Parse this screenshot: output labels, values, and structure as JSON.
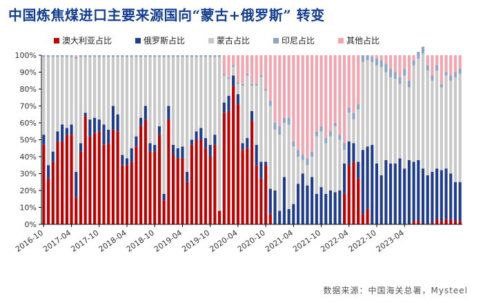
{
  "title": "中国炼焦煤进口主要来源国向“蒙古+俄罗斯” 转变",
  "source": "数据来源：中国海关总署，Mysteel",
  "legend": [
    {
      "label": "澳大利亚占比",
      "color": "#c00000"
    },
    {
      "label": "俄罗斯占比",
      "color": "#1f3d8c"
    },
    {
      "label": "蒙古占比",
      "color": "#c8c8c8"
    },
    {
      "label": "印尼占比",
      "color": "#8ea5c8"
    },
    {
      "label": "其他占比",
      "color": "#f2a5ae"
    }
  ],
  "chart_data": {
    "type": "bar",
    "stacked": true,
    "title": "中国炼焦煤进口主要来源国向“蒙古+俄罗斯” 转变",
    "x_start": "2016-10",
    "x_end": "2023-09",
    "tick_labels": [
      "2016-10",
      "2017-04",
      "2017-10",
      "2018-04",
      "2018-10",
      "2019-04",
      "2019-10",
      "2020-04",
      "2020-10",
      "2021-04",
      "2021-10",
      "2022-04",
      "2022-10",
      "2023-04"
    ],
    "y_ticks": [
      "0%",
      "10%",
      "20%",
      "30%",
      "40%",
      "50%",
      "60%",
      "70%",
      "80%",
      "90%",
      "100%"
    ],
    "ylim": [
      0,
      100
    ],
    "unit": "%",
    "series": [
      {
        "name": "澳大利亚占比",
        "color": "#c00000",
        "values": [
          47,
          27,
          37,
          49,
          49,
          53,
          53,
          16,
          43,
          64,
          52,
          54,
          55,
          47,
          48,
          56,
          55,
          35,
          35,
          37,
          46,
          58,
          62,
          43,
          43,
          53,
          14,
          62,
          41,
          39,
          39,
          25,
          47,
          50,
          50,
          45,
          40,
          47,
          8,
          66,
          67,
          82,
          71,
          44,
          45,
          61,
          35,
          27,
          35,
          6,
          0,
          0,
          0,
          0,
          0,
          0,
          0,
          0,
          0,
          0,
          0,
          0,
          0,
          0,
          0,
          18,
          35,
          37,
          27,
          6,
          9,
          0,
          0,
          0,
          0,
          0,
          0,
          0,
          0,
          0,
          2,
          2,
          0,
          0,
          1,
          3,
          2,
          3,
          3,
          2,
          2
        ]
      },
      {
        "name": "俄罗斯占比",
        "color": "#1f3d8c",
        "values": [
          6,
          8,
          6,
          6,
          10,
          4,
          6,
          15,
          5,
          2,
          10,
          9,
          7,
          12,
          8,
          14,
          10,
          6,
          4,
          8,
          6,
          5,
          8,
          5,
          4,
          5,
          4,
          8,
          6,
          6,
          7,
          6,
          3,
          5,
          7,
          6,
          7,
          6,
          0,
          6,
          9,
          6,
          6,
          4,
          6,
          6,
          12,
          10,
          2,
          15,
          20,
          8,
          28,
          9,
          12,
          24,
          30,
          23,
          28,
          18,
          22,
          18,
          20,
          19,
          20,
          18,
          14,
          11,
          10,
          38,
          37,
          47,
          36,
          29,
          38,
          36,
          36,
          39,
          33,
          38,
          35,
          36,
          33,
          29,
          30,
          30,
          30,
          30,
          27,
          23,
          23
        ]
      },
      {
        "name": "蒙古占比",
        "color": "#c8c8c8",
        "values": [
          46,
          64,
          56,
          44,
          40,
          42,
          40,
          67,
          51,
          33,
          37,
          36,
          37,
          40,
          43,
          29,
          34,
          58,
          60,
          54,
          47,
          36,
          29,
          51,
          52,
          41,
          81,
          29,
          52,
          54,
          53,
          68,
          49,
          44,
          42,
          48,
          52,
          46,
          91,
          16,
          10,
          5,
          6,
          34,
          37,
          15,
          35,
          50,
          42,
          49,
          36,
          45,
          32,
          50,
          34,
          16,
          8,
          12,
          12,
          34,
          33,
          30,
          32,
          39,
          30,
          8,
          17,
          14,
          31,
          52,
          51,
          49,
          58,
          64,
          52,
          51,
          50,
          44,
          55,
          43,
          57,
          60,
          68,
          62,
          54,
          58,
          49,
          55,
          55,
          62,
          64
        ]
      },
      {
        "name": "印尼占比",
        "color": "#8ea5c8",
        "values": [
          1,
          1,
          1,
          1,
          1,
          1,
          1,
          1,
          1,
          1,
          1,
          1,
          1,
          1,
          1,
          1,
          1,
          1,
          1,
          1,
          1,
          1,
          1,
          1,
          1,
          1,
          1,
          1,
          1,
          1,
          1,
          1,
          1,
          1,
          1,
          1,
          1,
          1,
          1,
          1,
          1,
          1,
          1,
          1,
          1,
          1,
          1,
          1,
          1,
          3,
          4,
          5,
          3,
          4,
          3,
          4,
          3,
          4,
          3,
          3,
          3,
          3,
          3,
          2,
          3,
          4,
          3,
          4,
          3,
          4,
          3,
          3,
          4,
          4,
          5,
          5,
          4,
          4,
          4,
          4,
          3,
          4,
          4,
          3,
          3,
          3,
          2,
          2,
          3,
          3,
          3
        ]
      },
      {
        "name": "其他占比",
        "color": "#f2a5ae",
        "values": [
          0,
          0,
          0,
          0,
          0,
          0,
          0,
          1,
          0,
          0,
          0,
          0,
          0,
          0,
          0,
          0,
          0,
          0,
          0,
          0,
          0,
          0,
          0,
          0,
          0,
          0,
          0,
          0,
          0,
          0,
          0,
          0,
          0,
          0,
          0,
          0,
          0,
          0,
          0,
          11,
          13,
          6,
          16,
          17,
          11,
          17,
          17,
          12,
          20,
          27,
          40,
          42,
          37,
          37,
          51,
          56,
          59,
          61,
          57,
          45,
          42,
          49,
          45,
          40,
          47,
          52,
          31,
          34,
          29,
          0,
          0,
          1,
          2,
          3,
          5,
          8,
          10,
          13,
          8,
          15,
          3,
          0,
          0,
          6,
          12,
          6,
          17,
          10,
          12,
          10,
          8
        ]
      }
    ]
  }
}
